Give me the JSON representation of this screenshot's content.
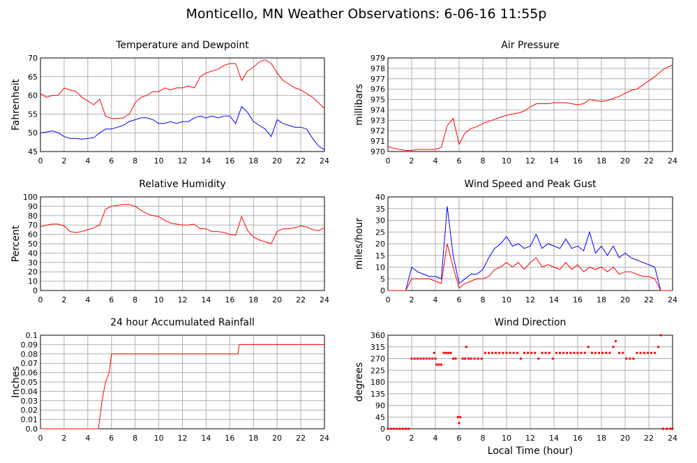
{
  "title": "Monticello, MN Weather Observations: 6-06-16 11:55p",
  "chart_data": [
    {
      "type": "line",
      "title": "Temperature and Dewpoint",
      "ylabel": "Fahrenheit",
      "x": [
        0,
        0.5,
        1,
        1.5,
        2,
        2.5,
        3,
        3.5,
        4,
        4.5,
        5,
        5.5,
        6,
        6.5,
        7,
        7.5,
        8,
        8.5,
        9,
        9.5,
        10,
        10.5,
        11,
        11.5,
        12,
        12.5,
        13,
        13.5,
        14,
        14.5,
        15,
        15.5,
        16,
        16.5,
        17,
        17.5,
        18,
        18.5,
        19,
        19.5,
        20,
        20.5,
        21,
        21.5,
        22,
        22.5,
        23,
        23.5,
        24
      ],
      "series": [
        {
          "color": "#ff0000",
          "values": [
            60.5,
            59.5,
            60,
            60,
            62,
            61.5,
            61,
            59.5,
            58.5,
            57.5,
            59,
            54.5,
            53.8,
            53.8,
            54,
            55,
            58,
            59.5,
            60,
            61,
            61,
            62,
            61.5,
            62,
            62,
            62.5,
            62,
            65,
            66,
            66.5,
            67,
            68,
            68.5,
            68.5,
            64,
            66.5,
            67.5,
            69,
            69.5,
            68.5,
            66,
            64,
            63,
            62,
            61.5,
            60.5,
            59.5,
            58,
            56.5
          ]
        },
        {
          "color": "#0000ff",
          "values": [
            50,
            50.2,
            50.5,
            50,
            49,
            48.5,
            48.5,
            48.3,
            48.5,
            48.7,
            50,
            51,
            51,
            51.5,
            52,
            53,
            53.5,
            54,
            54,
            53.5,
            52.5,
            52.5,
            53,
            52.5,
            53,
            53,
            54,
            54.5,
            54,
            54.5,
            54,
            54.5,
            54.5,
            52.5,
            57,
            55.5,
            53,
            52,
            51,
            49,
            53.5,
            52.5,
            52,
            51.5,
            51.5,
            51,
            48.5,
            46.5,
            45.5
          ]
        }
      ],
      "xlim": [
        0,
        24
      ],
      "xticks": [
        0,
        2,
        4,
        6,
        8,
        10,
        12,
        14,
        16,
        18,
        20,
        22,
        24
      ],
      "ylim": [
        45,
        70
      ],
      "yticks": [
        45,
        50,
        55,
        60,
        65,
        70
      ],
      "grid": true
    },
    {
      "type": "line",
      "title": "Air Pressure",
      "ylabel": "millibars",
      "x": [
        0,
        0.5,
        1,
        1.5,
        2,
        2.5,
        3,
        3.5,
        4,
        4.5,
        5,
        5.5,
        6,
        6.5,
        7,
        7.5,
        8,
        8.5,
        9,
        9.5,
        10,
        10.5,
        11,
        11.5,
        12,
        12.5,
        13,
        13.5,
        14,
        14.5,
        15,
        15.5,
        16,
        16.5,
        17,
        17.5,
        18,
        18.5,
        19,
        19.5,
        20,
        20.5,
        21,
        21.5,
        22,
        22.5,
        23,
        23.5,
        24
      ],
      "series": [
        {
          "color": "#ff0000",
          "values": [
            970.5,
            970.3,
            970.2,
            970.1,
            970.1,
            970.2,
            970.2,
            970.2,
            970.2,
            970.4,
            972.5,
            973.2,
            970.7,
            971.8,
            972.2,
            972.4,
            972.7,
            972.9,
            973.1,
            973.3,
            973.5,
            973.6,
            973.7,
            973.9,
            974.3,
            974.6,
            974.6,
            974.6,
            974.7,
            974.7,
            974.7,
            974.6,
            974.5,
            974.6,
            975,
            974.9,
            974.8,
            974.9,
            975.1,
            975.3,
            975.6,
            975.9,
            976,
            976.4,
            976.8,
            977.2,
            977.7,
            978.1,
            978.3
          ]
        }
      ],
      "xlim": [
        0,
        24
      ],
      "xticks": [
        0,
        2,
        4,
        6,
        8,
        10,
        12,
        14,
        16,
        18,
        20,
        22,
        24
      ],
      "ylim": [
        970,
        979
      ],
      "yticks": [
        970,
        971,
        972,
        973,
        974,
        975,
        976,
        977,
        978,
        979
      ],
      "grid": true
    },
    {
      "type": "line",
      "title": "Relative Humidity",
      "ylabel": "Percent",
      "x": [
        0,
        0.5,
        1,
        1.5,
        2,
        2.5,
        3,
        3.5,
        4,
        4.5,
        5,
        5.5,
        6,
        6.5,
        7,
        7.5,
        8,
        8.5,
        9,
        9.5,
        10,
        10.5,
        11,
        11.5,
        12,
        12.5,
        13,
        13.5,
        14,
        14.5,
        15,
        15.5,
        16,
        16.5,
        17,
        17.5,
        18,
        18.5,
        19,
        19.5,
        20,
        20.5,
        21,
        21.5,
        22,
        22.5,
        23,
        23.5,
        24
      ],
      "series": [
        {
          "color": "#ff0000",
          "values": [
            68,
            70,
            71,
            71,
            69,
            63,
            62,
            63,
            65,
            67,
            70,
            87,
            90,
            91,
            92,
            92,
            90,
            86,
            82,
            80,
            79,
            75,
            72,
            71,
            70,
            70,
            71,
            66,
            66,
            63,
            63,
            62,
            60,
            59,
            79,
            64,
            57,
            54,
            52,
            50,
            63,
            66,
            66,
            67,
            69,
            68,
            65,
            64,
            67
          ]
        }
      ],
      "xlim": [
        0,
        24
      ],
      "xticks": [
        0,
        2,
        4,
        6,
        8,
        10,
        12,
        14,
        16,
        18,
        20,
        22,
        24
      ],
      "ylim": [
        0,
        100
      ],
      "yticks": [
        0,
        10,
        20,
        30,
        40,
        50,
        60,
        70,
        80,
        90,
        100
      ],
      "grid": true
    },
    {
      "type": "line",
      "title": "Wind Speed and Peak Gust",
      "ylabel": "miles/hour",
      "x": [
        0,
        0.5,
        1,
        1.5,
        2,
        2.5,
        3,
        3.5,
        4,
        4.5,
        5,
        5.5,
        6,
        6.5,
        7,
        7.5,
        8,
        8.5,
        9,
        9.5,
        10,
        10.5,
        11,
        11.5,
        12,
        12.5,
        13,
        13.5,
        14,
        14.5,
        15,
        15.5,
        16,
        16.5,
        17,
        17.5,
        18,
        18.5,
        19,
        19.5,
        20,
        20.5,
        21,
        21.5,
        22,
        22.5,
        23,
        23.5,
        24
      ],
      "series": [
        {
          "color": "#0000ff",
          "values": [
            0,
            0,
            0,
            0,
            10,
            8,
            7,
            6,
            6,
            5,
            36,
            15,
            3,
            5,
            7,
            7,
            9,
            14,
            18,
            20,
            23,
            19,
            20,
            18,
            19,
            24,
            18,
            20,
            19,
            18,
            22,
            18,
            19,
            17,
            25,
            16,
            19,
            15,
            19,
            14,
            16,
            14,
            13,
            12,
            11,
            10,
            0,
            0,
            0
          ]
        },
        {
          "color": "#ff0000",
          "values": [
            0,
            0,
            0,
            0,
            5,
            5,
            5,
            5,
            4,
            3,
            20,
            10,
            1,
            3,
            4,
            5,
            5,
            6,
            9,
            10,
            12,
            10,
            12,
            9,
            12,
            14,
            10,
            11,
            10,
            9,
            12,
            9,
            11,
            8,
            10,
            9,
            10,
            8,
            10,
            7,
            8,
            8,
            7,
            6,
            6,
            5,
            0,
            0,
            0
          ]
        }
      ],
      "xlim": [
        0,
        24
      ],
      "xticks": [
        0,
        2,
        4,
        6,
        8,
        10,
        12,
        14,
        16,
        18,
        20,
        22,
        24
      ],
      "ylim": [
        0,
        40
      ],
      "yticks": [
        0,
        5,
        10,
        15,
        20,
        25,
        30,
        35,
        40
      ],
      "grid": true
    },
    {
      "type": "line",
      "title": "24 hour Accumulated Rainfall",
      "ylabel": "Inches",
      "x": [
        0,
        4.9,
        5.2,
        5.5,
        5.8,
        6,
        16.7,
        16.8,
        24
      ],
      "series": [
        {
          "color": "#ff0000",
          "values": [
            0,
            0,
            0.03,
            0.05,
            0.06,
            0.08,
            0.08,
            0.09,
            0.09
          ]
        }
      ],
      "xlim": [
        0,
        24
      ],
      "xticks": [
        0,
        2,
        4,
        6,
        8,
        10,
        12,
        14,
        16,
        18,
        20,
        22,
        24
      ],
      "ylim": [
        0,
        0.1
      ],
      "yticks": [
        {
          "value": 0,
          "label": "0.0"
        },
        0.01,
        0.02,
        0.03,
        0.04,
        0.05,
        0.06,
        0.07,
        0.08,
        0.09,
        0.1
      ],
      "grid": true
    },
    {
      "type": "scatter",
      "title": "Wind Direction",
      "ylabel": "degrees",
      "xlabel": "Local Time (hour)",
      "color": "#ff0000",
      "x": [
        0,
        0.25,
        0.5,
        0.75,
        1,
        1.25,
        1.5,
        1.75,
        2,
        2.25,
        2.5,
        2.75,
        3,
        3.25,
        3.5,
        3.75,
        3.9,
        4,
        4.1,
        4.3,
        4.5,
        4.7,
        4.9,
        5.1,
        5.3,
        5.5,
        5.7,
        5.9,
        6,
        6.1,
        6.3,
        6.5,
        6.6,
        6.8,
        7,
        7.3,
        7.6,
        7.9,
        8.2,
        8.5,
        8.8,
        9.1,
        9.4,
        9.7,
        10,
        10.3,
        10.6,
        10.9,
        11.2,
        11.5,
        11.8,
        12.1,
        12.4,
        12.7,
        13,
        13.3,
        13.6,
        13.9,
        14.2,
        14.5,
        14.8,
        15.1,
        15.4,
        15.7,
        16,
        16.3,
        16.6,
        16.9,
        17.2,
        17.5,
        17.8,
        18.1,
        18.4,
        18.7,
        19,
        19.2,
        19.5,
        19.8,
        20.1,
        20.4,
        20.7,
        21,
        21.3,
        21.6,
        21.9,
        22.2,
        22.5,
        22.8,
        23,
        23.2,
        23.5,
        23.8,
        24
      ],
      "values": [
        0,
        0,
        0,
        0,
        0,
        0,
        0,
        0,
        270,
        270,
        270,
        270,
        270,
        270,
        270,
        270,
        292,
        270,
        247,
        247,
        247,
        292,
        292,
        292,
        292,
        270,
        270,
        45,
        22,
        45,
        270,
        270,
        315,
        270,
        270,
        270,
        270,
        270,
        292,
        292,
        292,
        292,
        292,
        292,
        292,
        292,
        292,
        292,
        270,
        292,
        292,
        292,
        292,
        270,
        292,
        292,
        292,
        270,
        292,
        292,
        292,
        292,
        292,
        292,
        292,
        292,
        292,
        315,
        292,
        292,
        292,
        292,
        292,
        292,
        315,
        337,
        292,
        292,
        270,
        270,
        270,
        292,
        292,
        292,
        292,
        292,
        292,
        315,
        360,
        0,
        0,
        0,
        0
      ],
      "xlim": [
        0,
        24
      ],
      "xticks": [
        0,
        2,
        4,
        6,
        8,
        10,
        12,
        14,
        16,
        18,
        20,
        22,
        24
      ],
      "ylim": [
        0,
        360
      ],
      "yticks": [
        0,
        45,
        90,
        135,
        180,
        225,
        270,
        315,
        360
      ],
      "grid": true
    }
  ]
}
